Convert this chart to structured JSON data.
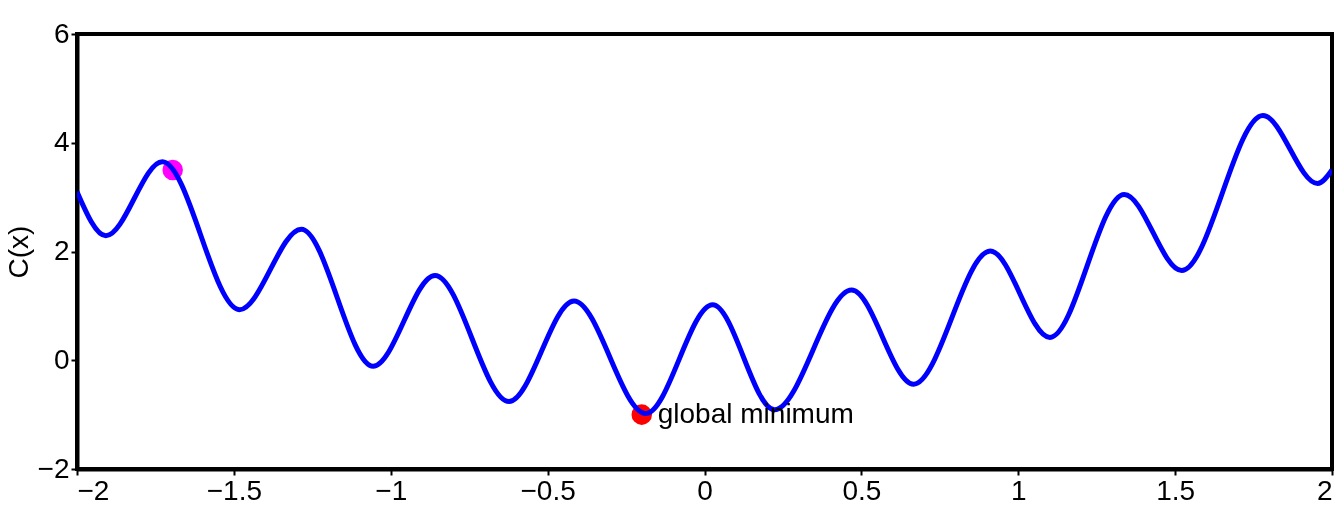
{
  "chart_data": {
    "type": "line",
    "ylabel": "C(x)",
    "series": [
      {
        "color": "#0000ff",
        "marker": "none",
        "line_style": "solid",
        "x": [
          -2,
          -1.908,
          -1.728,
          -1.482,
          -1.285,
          -1.056,
          -0.859,
          -0.623,
          -0.416,
          -0.187,
          0.026,
          0.223,
          0.469,
          0.666,
          0.911,
          1.101,
          1.338,
          1.521,
          1.78,
          1.954,
          2
        ],
        "values": [
          3.1,
          2.29,
          3.65,
          0.93,
          2.41,
          -0.11,
          1.56,
          -0.76,
          1.09,
          -0.98,
          1.02,
          -0.91,
          1.29,
          -0.44,
          2.01,
          0.42,
          3.05,
          1.65,
          4.5,
          3.25,
          3.5
        ]
      },
      {
        "type": "scatter",
        "color": "#ff00ff",
        "marker": "circle",
        "x": [
          -1.695
        ],
        "values": [
          3.5
        ]
      },
      {
        "type": "scatter",
        "color": "#ff0000",
        "marker": "circle",
        "x": [
          -0.2
        ],
        "values": [
          -1.0
        ]
      }
    ],
    "annotations": [
      {
        "text": "global minimum",
        "x": -0.2,
        "y": -1.0
      }
    ],
    "xlim": [
      -2,
      2
    ],
    "ylim": [
      -2,
      6
    ],
    "xticks": [
      {
        "value": -2,
        "label": "−2"
      },
      {
        "value": -1.5,
        "label": "−1.5"
      },
      {
        "value": -1,
        "label": "−1"
      },
      {
        "value": -0.5,
        "label": "−0.5"
      },
      0,
      0.5,
      1,
      1.5,
      2
    ],
    "yticks": [
      {
        "value": -2,
        "label": "−2"
      },
      0,
      2,
      4,
      6
    ],
    "grid": false
  }
}
